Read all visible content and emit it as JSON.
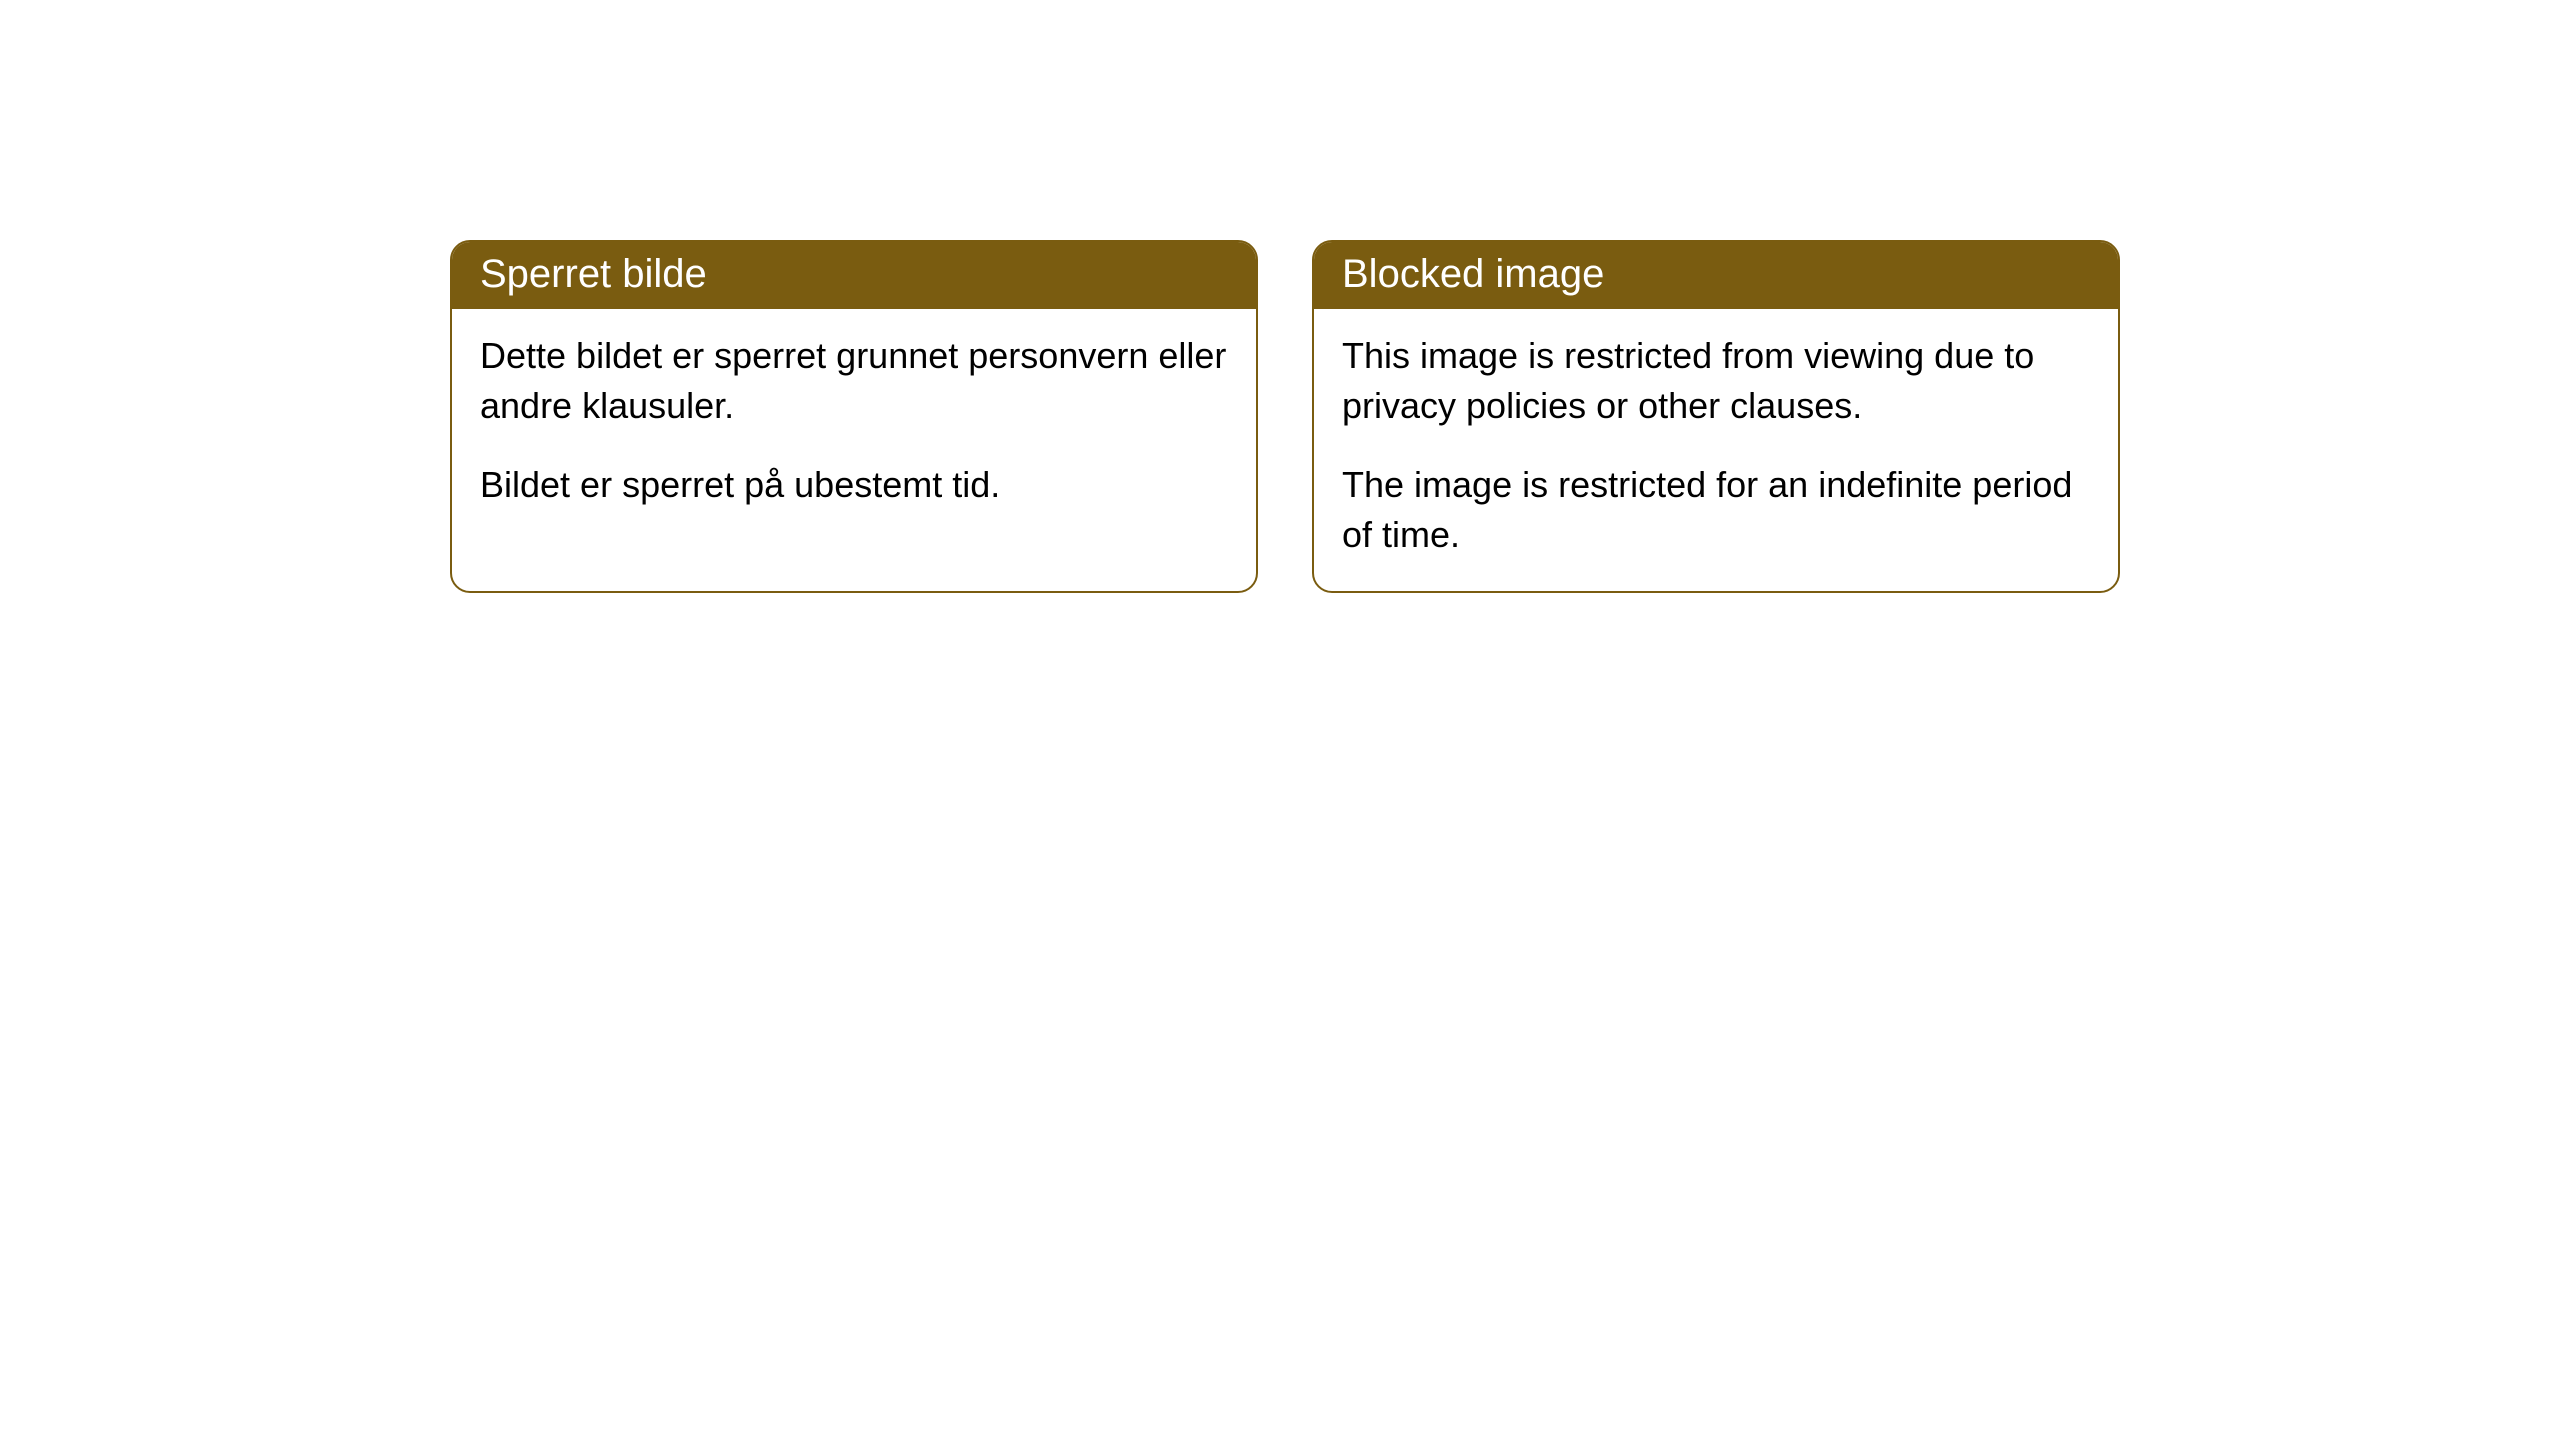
{
  "cards": {
    "left": {
      "header": "Sperret bilde",
      "text1": "Dette bildet er sperret grunnet personvern eller andre klausuler.",
      "text2": "Bildet er sperret på ubestemt tid."
    },
    "right": {
      "header": "Blocked image",
      "text1": "This image is restricted from viewing due to privacy policies or other clauses.",
      "text2": "The image is restricted for an indefinite period of time."
    }
  },
  "styling": {
    "header_background": "#7a5c10",
    "header_text_color": "#ffffff",
    "border_color": "#7a5c10",
    "body_background": "#ffffff",
    "body_text_color": "#000000",
    "border_radius": 20,
    "header_fontsize": 40,
    "body_fontsize": 36
  }
}
